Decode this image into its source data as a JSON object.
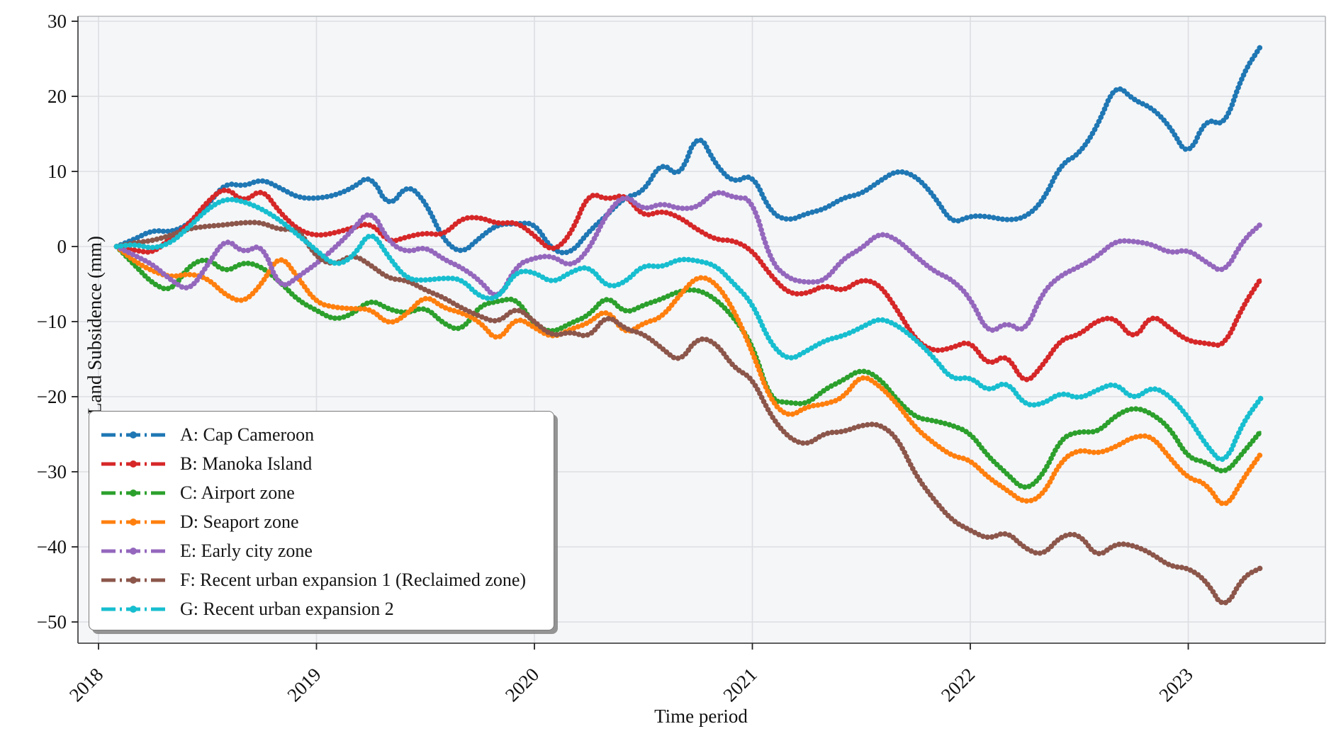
{
  "figure": {
    "background": "#ffffff",
    "plot_background": "#f5f6f8",
    "grid_color": "#dcdee2",
    "spine_dark": "#4a4a4a",
    "spine_light": "#b5b8bb",
    "tick_color": "#222222"
  },
  "chart_data": {
    "type": "line",
    "title": "",
    "xlabel": "Time period",
    "ylabel": "Land Subsidence (mm)",
    "grid": true,
    "linestyle": "dash-dot",
    "marker": "o",
    "legend_position": "lower left",
    "xlim": [
      2017.91,
      2023.63
    ],
    "ylim": [
      -52.8,
      30.7
    ],
    "x_ticks": [
      2018,
      2019,
      2020,
      2021,
      2022,
      2023
    ],
    "x_tick_labels": [
      "2018",
      "2019",
      "2020",
      "2021",
      "2022",
      "2023"
    ],
    "y_ticks": [
      30,
      20,
      10,
      0,
      -10,
      -20,
      -30,
      -40,
      -50
    ],
    "y_tick_labels": [
      "30",
      "20",
      "10",
      "0",
      "−10",
      "−20",
      "−30",
      "−40",
      "−50"
    ],
    "x_start": 2018.083,
    "x_step": 0.083333,
    "series": [
      {
        "id": "A",
        "label": "A: Cap Cameroon",
        "color": "#1f77b4",
        "values": [
          0,
          1.0,
          2.2,
          1.9,
          3.0,
          5.5,
          8.5,
          8.0,
          9.0,
          7.8,
          6.5,
          6.4,
          6.8,
          7.8,
          9.6,
          5.0,
          8.4,
          6.0,
          0.8,
          -1.0,
          1.2,
          3.0,
          3.0,
          3.2,
          -0.6,
          -1.0,
          2.0,
          4.2,
          6.6,
          7.2,
          11.4,
          9.0,
          15.5,
          10.8,
          8.4,
          9.8,
          4.5,
          3.4,
          4.4,
          5.0,
          6.5,
          7.0,
          8.7,
          10.2,
          9.4,
          6.8,
          3.0,
          4.1,
          4.0,
          3.5,
          3.8,
          6.0,
          11.0,
          12.3,
          16.0,
          21.8,
          19.5,
          18.5,
          16.0,
          11.8,
          17.2,
          15.9,
          23.0,
          26.7
        ]
      },
      {
        "id": "B",
        "label": "B: Manoka Island",
        "color": "#d62728",
        "values": [
          0,
          -0.5,
          -0.9,
          1.2,
          3.0,
          6.0,
          8.0,
          5.8,
          7.8,
          4.5,
          2.2,
          1.4,
          1.8,
          2.5,
          3.2,
          0.5,
          1.3,
          1.8,
          1.5,
          3.8,
          3.9,
          3.0,
          3.3,
          1.5,
          -0.8,
          1.5,
          7.3,
          6.2,
          7.0,
          3.9,
          4.8,
          3.9,
          2.2,
          0.9,
          0.8,
          -0.5,
          -3.8,
          -6.3,
          -6.3,
          -5.1,
          -6.0,
          -4.3,
          -5.0,
          -8.5,
          -12.5,
          -14.0,
          -13.5,
          -12.5,
          -16.0,
          -14.2,
          -18.5,
          -15.8,
          -12.3,
          -11.8,
          -9.8,
          -9.4,
          -12.6,
          -8.9,
          -10.9,
          -12.6,
          -12.9,
          -13.3,
          -8.0,
          -4.3
        ]
      },
      {
        "id": "C",
        "label": "C: Airport zone",
        "color": "#2ca02c",
        "values": [
          0,
          -2.5,
          -5.0,
          -6.0,
          -2.5,
          -1.5,
          -3.5,
          -2.0,
          -2.7,
          -4.7,
          -7.2,
          -8.5,
          -9.8,
          -9.0,
          -7.0,
          -8.4,
          -8.9,
          -8.0,
          -10.3,
          -11.3,
          -7.8,
          -7.3,
          -6.8,
          -10.5,
          -11.5,
          -10.2,
          -9.2,
          -6.4,
          -9.0,
          -7.8,
          -7.0,
          -5.9,
          -5.7,
          -7.0,
          -9.5,
          -13.0,
          -20.5,
          -20.8,
          -21.0,
          -19.0,
          -17.8,
          -16.3,
          -17.5,
          -20.5,
          -22.8,
          -23.2,
          -23.8,
          -24.8,
          -28.0,
          -30.2,
          -32.6,
          -30.5,
          -25.5,
          -24.6,
          -24.8,
          -22.5,
          -21.4,
          -22.2,
          -24.2,
          -28.2,
          -28.7,
          -30.4,
          -27.5,
          -24.6
        ]
      },
      {
        "id": "D",
        "label": "D: Seaport zone",
        "color": "#ff7f0e",
        "values": [
          0,
          -2.0,
          -3.3,
          -4.1,
          -3.6,
          -4.2,
          -6.5,
          -7.5,
          -5.0,
          -0.9,
          -4.2,
          -7.5,
          -8.1,
          -8.3,
          -8.3,
          -10.5,
          -9.0,
          -6.4,
          -8.2,
          -8.8,
          -10.0,
          -12.8,
          -9.3,
          -10.8,
          -12.2,
          -11.0,
          -10.2,
          -8.2,
          -11.8,
          -10.2,
          -9.5,
          -6.5,
          -3.8,
          -4.8,
          -8.5,
          -14.0,
          -20.5,
          -22.8,
          -21.3,
          -21.0,
          -20.2,
          -17.0,
          -18.5,
          -21.0,
          -24.2,
          -26.2,
          -27.9,
          -28.4,
          -30.8,
          -32.4,
          -34.2,
          -33.2,
          -28.5,
          -27.0,
          -27.6,
          -26.7,
          -25.3,
          -25.2,
          -28.2,
          -30.9,
          -31.5,
          -35.2,
          -31.0,
          -27.6
        ]
      },
      {
        "id": "E",
        "label": "E: Early city zone",
        "color": "#9467bd",
        "values": [
          0,
          -1.2,
          -2.4,
          -4.5,
          -6.0,
          -2.5,
          1.2,
          -1.0,
          0.5,
          -5.8,
          -4.0,
          -2.3,
          -0.2,
          2.2,
          5.1,
          0.5,
          -0.8,
          0.0,
          -1.7,
          -2.8,
          -4.5,
          -7.3,
          -2.5,
          -1.5,
          -1.2,
          -2.8,
          -0.5,
          4.5,
          7.0,
          4.8,
          5.8,
          5.0,
          5.2,
          7.5,
          6.5,
          6.4,
          -2.0,
          -4.3,
          -4.8,
          -4.6,
          -1.6,
          -0.3,
          1.9,
          0.9,
          -1.3,
          -3.3,
          -4.4,
          -6.8,
          -11.8,
          -10.0,
          -11.6,
          -6.0,
          -3.8,
          -2.7,
          -1.3,
          0.8,
          0.7,
          0.3,
          -0.9,
          -0.4,
          -2.1,
          -3.6,
          0.8,
          3.0
        ]
      },
      {
        "id": "F",
        "label": "F: Recent urban expansion 1 (Reclaimed zone)",
        "color": "#8c564b",
        "values": [
          0,
          0.5,
          0.8,
          1.5,
          2.4,
          2.7,
          2.9,
          3.2,
          3.2,
          2.2,
          2.4,
          -1.5,
          -2.5,
          -1.0,
          -2.5,
          -4.3,
          -4.5,
          -5.8,
          -6.8,
          -8.2,
          -9.3,
          -10.2,
          -8.0,
          -10.0,
          -12.0,
          -11.3,
          -12.2,
          -9.0,
          -11.0,
          -11.6,
          -13.5,
          -15.5,
          -12.0,
          -12.8,
          -16.2,
          -17.5,
          -22.5,
          -25.5,
          -26.5,
          -24.8,
          -24.7,
          -23.8,
          -23.6,
          -25.5,
          -30.5,
          -33.7,
          -36.5,
          -37.8,
          -39.0,
          -37.9,
          -40.2,
          -41.2,
          -38.5,
          -38.2,
          -41.5,
          -39.5,
          -39.8,
          -40.9,
          -42.6,
          -42.8,
          -44.5,
          -48.5,
          -44.0,
          -42.8
        ]
      },
      {
        "id": "G",
        "label": "G: Recent urban expansion 2",
        "color": "#17becf",
        "values": [
          0,
          0.3,
          -0.3,
          0.5,
          2.6,
          5.0,
          6.4,
          6.0,
          5.0,
          3.5,
          1.5,
          -0.5,
          -2.6,
          -1.5,
          2.3,
          -1.5,
          -4.4,
          -4.5,
          -4.2,
          -4.3,
          -6.8,
          -7.0,
          -3.2,
          -3.4,
          -4.9,
          -3.4,
          -2.5,
          -5.5,
          -4.8,
          -2.4,
          -2.8,
          -1.6,
          -1.9,
          -2.5,
          -5.0,
          -7.5,
          -13.0,
          -15.2,
          -13.9,
          -12.5,
          -11.9,
          -10.8,
          -9.5,
          -10.5,
          -12.4,
          -14.8,
          -17.8,
          -17.3,
          -19.4,
          -17.8,
          -21.2,
          -21.0,
          -19.4,
          -20.3,
          -19.1,
          -18.1,
          -20.5,
          -18.6,
          -19.9,
          -22.7,
          -26.5,
          -29.2,
          -23.5,
          -20.2
        ]
      }
    ]
  }
}
